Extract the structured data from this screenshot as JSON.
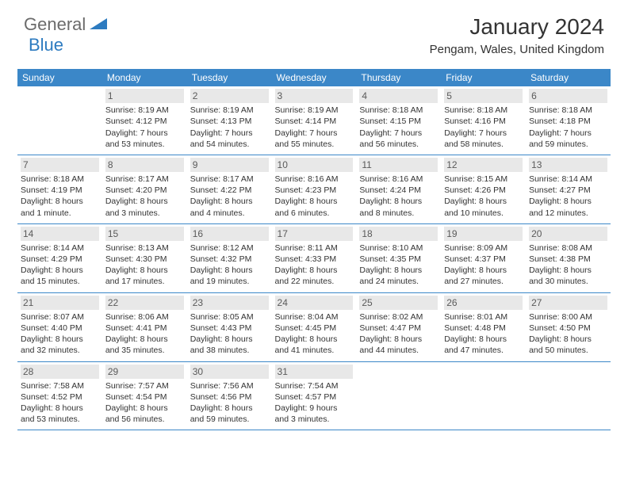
{
  "logo": {
    "general": "General",
    "blue": "Blue"
  },
  "title": "January 2024",
  "location": "Pengam, Wales, United Kingdom",
  "colors": {
    "header_bg": "#3b87c8",
    "header_text": "#ffffff",
    "daynum_bg": "#e8e8e8",
    "daynum_text": "#5a5a5a",
    "body_text": "#333333",
    "logo_gray": "#6b6b6b",
    "logo_blue": "#2d7bc0",
    "row_border": "#3b87c8"
  },
  "weekdays": [
    "Sunday",
    "Monday",
    "Tuesday",
    "Wednesday",
    "Thursday",
    "Friday",
    "Saturday"
  ],
  "weeks": [
    [
      {
        "num": "",
        "sunrise": "",
        "sunset": "",
        "daylight": ""
      },
      {
        "num": "1",
        "sunrise": "Sunrise: 8:19 AM",
        "sunset": "Sunset: 4:12 PM",
        "daylight": "Daylight: 7 hours and 53 minutes."
      },
      {
        "num": "2",
        "sunrise": "Sunrise: 8:19 AM",
        "sunset": "Sunset: 4:13 PM",
        "daylight": "Daylight: 7 hours and 54 minutes."
      },
      {
        "num": "3",
        "sunrise": "Sunrise: 8:19 AM",
        "sunset": "Sunset: 4:14 PM",
        "daylight": "Daylight: 7 hours and 55 minutes."
      },
      {
        "num": "4",
        "sunrise": "Sunrise: 8:18 AM",
        "sunset": "Sunset: 4:15 PM",
        "daylight": "Daylight: 7 hours and 56 minutes."
      },
      {
        "num": "5",
        "sunrise": "Sunrise: 8:18 AM",
        "sunset": "Sunset: 4:16 PM",
        "daylight": "Daylight: 7 hours and 58 minutes."
      },
      {
        "num": "6",
        "sunrise": "Sunrise: 8:18 AM",
        "sunset": "Sunset: 4:18 PM",
        "daylight": "Daylight: 7 hours and 59 minutes."
      }
    ],
    [
      {
        "num": "7",
        "sunrise": "Sunrise: 8:18 AM",
        "sunset": "Sunset: 4:19 PM",
        "daylight": "Daylight: 8 hours and 1 minute."
      },
      {
        "num": "8",
        "sunrise": "Sunrise: 8:17 AM",
        "sunset": "Sunset: 4:20 PM",
        "daylight": "Daylight: 8 hours and 3 minutes."
      },
      {
        "num": "9",
        "sunrise": "Sunrise: 8:17 AM",
        "sunset": "Sunset: 4:22 PM",
        "daylight": "Daylight: 8 hours and 4 minutes."
      },
      {
        "num": "10",
        "sunrise": "Sunrise: 8:16 AM",
        "sunset": "Sunset: 4:23 PM",
        "daylight": "Daylight: 8 hours and 6 minutes."
      },
      {
        "num": "11",
        "sunrise": "Sunrise: 8:16 AM",
        "sunset": "Sunset: 4:24 PM",
        "daylight": "Daylight: 8 hours and 8 minutes."
      },
      {
        "num": "12",
        "sunrise": "Sunrise: 8:15 AM",
        "sunset": "Sunset: 4:26 PM",
        "daylight": "Daylight: 8 hours and 10 minutes."
      },
      {
        "num": "13",
        "sunrise": "Sunrise: 8:14 AM",
        "sunset": "Sunset: 4:27 PM",
        "daylight": "Daylight: 8 hours and 12 minutes."
      }
    ],
    [
      {
        "num": "14",
        "sunrise": "Sunrise: 8:14 AM",
        "sunset": "Sunset: 4:29 PM",
        "daylight": "Daylight: 8 hours and 15 minutes."
      },
      {
        "num": "15",
        "sunrise": "Sunrise: 8:13 AM",
        "sunset": "Sunset: 4:30 PM",
        "daylight": "Daylight: 8 hours and 17 minutes."
      },
      {
        "num": "16",
        "sunrise": "Sunrise: 8:12 AM",
        "sunset": "Sunset: 4:32 PM",
        "daylight": "Daylight: 8 hours and 19 minutes."
      },
      {
        "num": "17",
        "sunrise": "Sunrise: 8:11 AM",
        "sunset": "Sunset: 4:33 PM",
        "daylight": "Daylight: 8 hours and 22 minutes."
      },
      {
        "num": "18",
        "sunrise": "Sunrise: 8:10 AM",
        "sunset": "Sunset: 4:35 PM",
        "daylight": "Daylight: 8 hours and 24 minutes."
      },
      {
        "num": "19",
        "sunrise": "Sunrise: 8:09 AM",
        "sunset": "Sunset: 4:37 PM",
        "daylight": "Daylight: 8 hours and 27 minutes."
      },
      {
        "num": "20",
        "sunrise": "Sunrise: 8:08 AM",
        "sunset": "Sunset: 4:38 PM",
        "daylight": "Daylight: 8 hours and 30 minutes."
      }
    ],
    [
      {
        "num": "21",
        "sunrise": "Sunrise: 8:07 AM",
        "sunset": "Sunset: 4:40 PM",
        "daylight": "Daylight: 8 hours and 32 minutes."
      },
      {
        "num": "22",
        "sunrise": "Sunrise: 8:06 AM",
        "sunset": "Sunset: 4:41 PM",
        "daylight": "Daylight: 8 hours and 35 minutes."
      },
      {
        "num": "23",
        "sunrise": "Sunrise: 8:05 AM",
        "sunset": "Sunset: 4:43 PM",
        "daylight": "Daylight: 8 hours and 38 minutes."
      },
      {
        "num": "24",
        "sunrise": "Sunrise: 8:04 AM",
        "sunset": "Sunset: 4:45 PM",
        "daylight": "Daylight: 8 hours and 41 minutes."
      },
      {
        "num": "25",
        "sunrise": "Sunrise: 8:02 AM",
        "sunset": "Sunset: 4:47 PM",
        "daylight": "Daylight: 8 hours and 44 minutes."
      },
      {
        "num": "26",
        "sunrise": "Sunrise: 8:01 AM",
        "sunset": "Sunset: 4:48 PM",
        "daylight": "Daylight: 8 hours and 47 minutes."
      },
      {
        "num": "27",
        "sunrise": "Sunrise: 8:00 AM",
        "sunset": "Sunset: 4:50 PM",
        "daylight": "Daylight: 8 hours and 50 minutes."
      }
    ],
    [
      {
        "num": "28",
        "sunrise": "Sunrise: 7:58 AM",
        "sunset": "Sunset: 4:52 PM",
        "daylight": "Daylight: 8 hours and 53 minutes."
      },
      {
        "num": "29",
        "sunrise": "Sunrise: 7:57 AM",
        "sunset": "Sunset: 4:54 PM",
        "daylight": "Daylight: 8 hours and 56 minutes."
      },
      {
        "num": "30",
        "sunrise": "Sunrise: 7:56 AM",
        "sunset": "Sunset: 4:56 PM",
        "daylight": "Daylight: 8 hours and 59 minutes."
      },
      {
        "num": "31",
        "sunrise": "Sunrise: 7:54 AM",
        "sunset": "Sunset: 4:57 PM",
        "daylight": "Daylight: 9 hours and 3 minutes."
      },
      {
        "num": "",
        "sunrise": "",
        "sunset": "",
        "daylight": ""
      },
      {
        "num": "",
        "sunrise": "",
        "sunset": "",
        "daylight": ""
      },
      {
        "num": "",
        "sunrise": "",
        "sunset": "",
        "daylight": ""
      }
    ]
  ]
}
